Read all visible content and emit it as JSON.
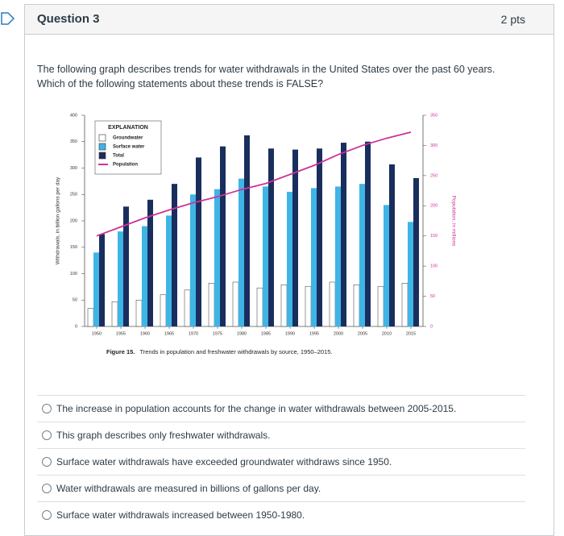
{
  "header": {
    "title": "Question 3",
    "points": "2 pts"
  },
  "prompt": [
    "The following graph describes trends for water withdrawals in the United States over the past 60 years.",
    "Which of the following statements about these trends is FALSE?"
  ],
  "chart_data": {
    "type": "bar",
    "categories": [
      "1950",
      "1955",
      "1960",
      "1965",
      "1970",
      "1975",
      "1980",
      "1985",
      "1990",
      "1995",
      "2000",
      "2005",
      "2010",
      "2015"
    ],
    "series": [
      {
        "name": "Groundwater",
        "color": "#ffffff",
        "values": [
          34,
          47,
          50,
          60,
          69,
          82,
          84,
          73,
          79,
          76,
          84,
          79,
          76,
          82
        ]
      },
      {
        "name": "Surface water",
        "color": "#3fb5e5",
        "values": [
          140,
          180,
          190,
          210,
          250,
          260,
          280,
          265,
          255,
          262,
          265,
          270,
          230,
          198
        ]
      },
      {
        "name": "Total",
        "color": "#1a2e5e",
        "values": [
          175,
          227,
          240,
          270,
          320,
          341,
          362,
          337,
          335,
          337,
          348,
          350,
          307,
          281
        ]
      },
      {
        "name": "Population",
        "color": "#cc3399",
        "type": "line",
        "axis": "y2",
        "values": [
          150,
          165,
          180,
          193,
          205,
          215,
          227,
          237,
          252,
          267,
          285,
          300,
          312,
          322
        ]
      }
    ],
    "ylabel": "Withdrawals, in billion gallons per day",
    "y2label": "Population, in millions",
    "ylim": [
      0,
      400
    ],
    "yticks": [
      0,
      50,
      100,
      150,
      200,
      250,
      300,
      350,
      400
    ],
    "y2lim": [
      0,
      350
    ],
    "y2ticks": [
      0,
      50,
      100,
      150,
      200,
      250,
      300,
      350
    ],
    "legend_title": "EXPLANATION",
    "legend": "upper-left",
    "figure_label": "Figure 15.",
    "caption": "Trends in population and freshwater withdrawals by source, 1950–2015."
  },
  "options": [
    "The increase in population accounts for the change in water withdrawals between 2005-2015.",
    "This graph describes only freshwater withdrawals.",
    "Surface water withdrawals have exceeded groundwater withdraws since 1950.",
    "Water withdrawals are measured in billions of gallons per day.",
    "Surface water withdrawals increased between 1950-1980."
  ]
}
